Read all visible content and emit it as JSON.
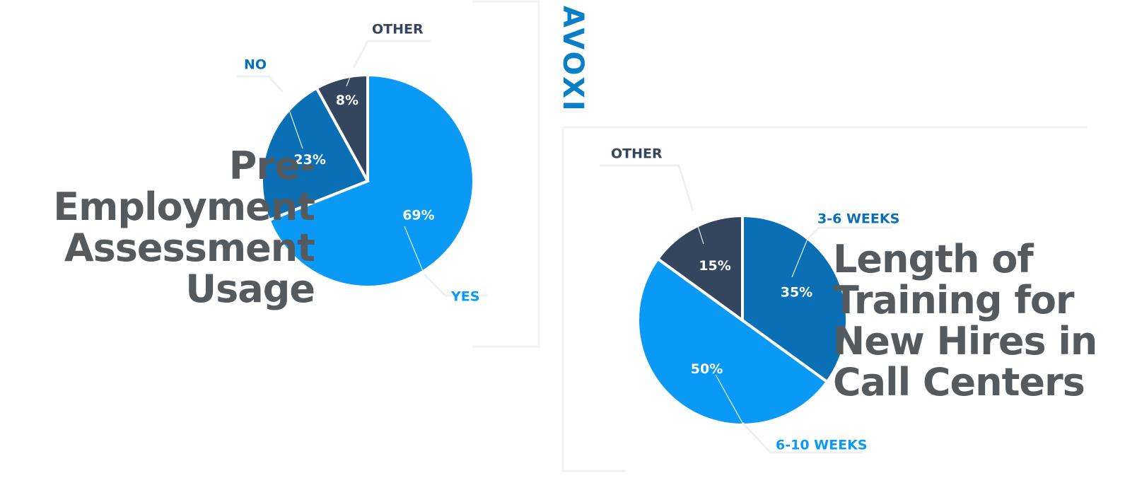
{
  "brand": "AVOXI",
  "chart_data": [
    {
      "type": "pie",
      "title": "Pre-Employment Assessment Usage",
      "categories": [
        "YES",
        "NO",
        "OTHER"
      ],
      "values": [
        69,
        23,
        8
      ],
      "value_labels": [
        "69%",
        "23%",
        "8%"
      ],
      "colors": [
        "#0a9af5",
        "#0a6fb5",
        "#33465e"
      ]
    },
    {
      "type": "pie",
      "title": "Length of Training for New Hires in Call Centers",
      "categories": [
        "3-6 WEEKS",
        "6-10 WEEKS",
        "OTHER"
      ],
      "values": [
        35,
        50,
        15
      ],
      "value_labels": [
        "35%",
        "50%",
        "15%"
      ],
      "colors": [
        "#0a6fb5",
        "#0a9af5",
        "#33465e"
      ]
    }
  ]
}
